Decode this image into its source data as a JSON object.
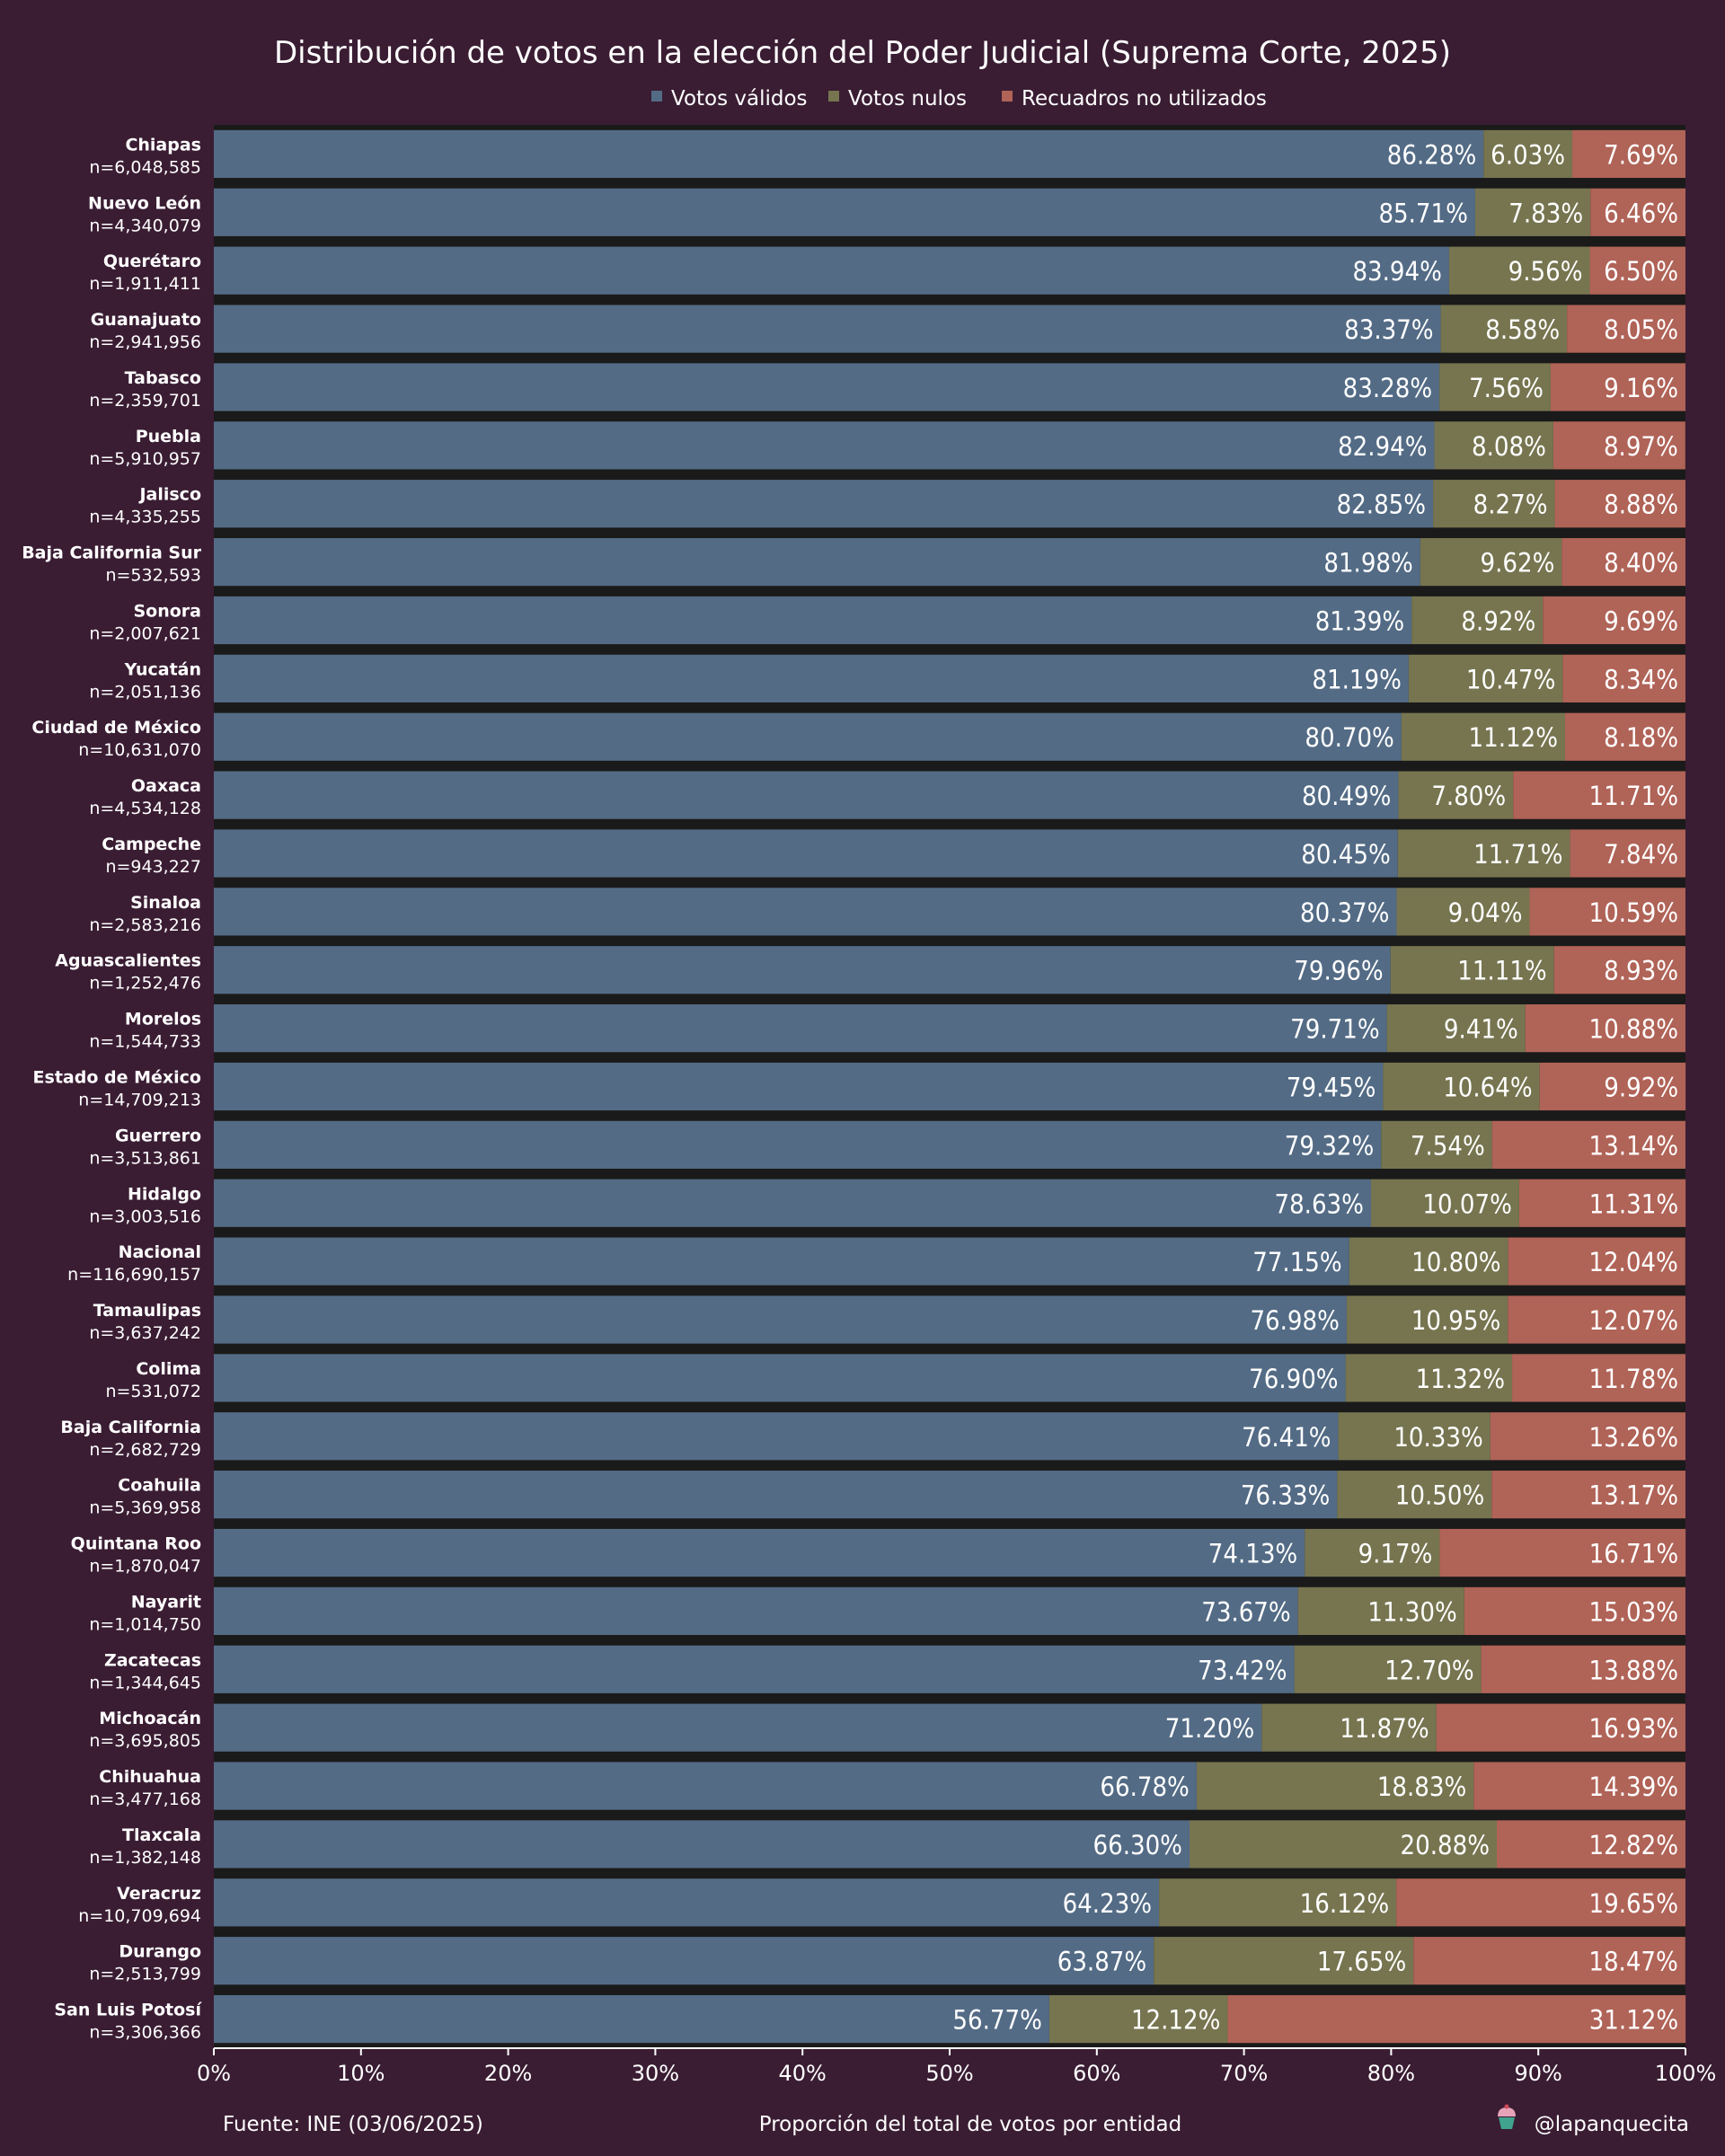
{
  "chart_data": {
    "type": "bar",
    "orientation": "horizontal",
    "stacked": true,
    "title": "Distribución de votos en la elección del Poder Judicial (Suprema Corte, 2025)",
    "xlabel": "Proporción del total de votos por entidad",
    "xlim": [
      0,
      100
    ],
    "x_ticks": [
      "0%",
      "10%",
      "20%",
      "30%",
      "40%",
      "50%",
      "60%",
      "70%",
      "80%",
      "90%",
      "100%"
    ],
    "legend_position": "top-center",
    "grid": false,
    "categories": [
      "Chiapas",
      "Nuevo León",
      "Querétaro",
      "Guanajuato",
      "Tabasco",
      "Puebla",
      "Jalisco",
      "Baja California Sur",
      "Sonora",
      "Yucatán",
      "Ciudad de México",
      "Oaxaca",
      "Campeche",
      "Sinaloa",
      "Aguascalientes",
      "Morelos",
      "Estado de México",
      "Guerrero",
      "Hidalgo",
      "Nacional",
      "Tamaulipas",
      "Colima",
      "Baja California",
      "Coahuila",
      "Quintana Roo",
      "Nayarit",
      "Zacatecas",
      "Michoacán",
      "Chihuahua",
      "Tlaxcala",
      "Veracruz",
      "Durango",
      "San Luis Potosí"
    ],
    "totals": [
      "n=6,048,585",
      "n=4,340,079",
      "n=1,911,411",
      "n=2,941,956",
      "n=2,359,701",
      "n=5,910,957",
      "n=4,335,255",
      "n=532,593",
      "n=2,007,621",
      "n=2,051,136",
      "n=10,631,070",
      "n=4,534,128",
      "n=943,227",
      "n=2,583,216",
      "n=1,252,476",
      "n=1,544,733",
      "n=14,709,213",
      "n=3,513,861",
      "n=3,003,516",
      "n=116,690,157",
      "n=3,637,242",
      "n=531,072",
      "n=2,682,729",
      "n=5,369,958",
      "n=1,870,047",
      "n=1,014,750",
      "n=1,344,645",
      "n=3,695,805",
      "n=3,477,168",
      "n=1,382,148",
      "n=10,709,694",
      "n=2,513,799",
      "n=3,306,366"
    ],
    "series": [
      {
        "name": "Votos válidos",
        "color": "#536b85",
        "values": [
          86.28,
          85.71,
          83.94,
          83.37,
          83.28,
          82.94,
          82.85,
          81.98,
          81.39,
          81.19,
          80.7,
          80.49,
          80.45,
          80.37,
          79.96,
          79.71,
          79.45,
          79.32,
          78.63,
          77.15,
          76.98,
          76.9,
          76.41,
          76.33,
          74.13,
          73.67,
          73.42,
          71.2,
          66.78,
          66.3,
          64.23,
          63.87,
          56.77
        ]
      },
      {
        "name": "Votos nulos",
        "color": "#767550",
        "values": [
          6.03,
          7.83,
          9.56,
          8.58,
          7.56,
          8.08,
          8.27,
          9.62,
          8.92,
          10.47,
          11.12,
          7.8,
          11.71,
          9.04,
          11.11,
          9.41,
          10.64,
          7.54,
          10.07,
          10.8,
          10.95,
          11.32,
          10.33,
          10.5,
          9.17,
          11.3,
          12.7,
          11.87,
          18.83,
          20.88,
          16.12,
          17.65,
          12.12
        ]
      },
      {
        "name": "Recuadros no utilizados",
        "color": "#b06357",
        "values": [
          7.69,
          6.46,
          6.5,
          8.05,
          9.16,
          8.97,
          8.88,
          8.4,
          9.69,
          8.34,
          8.18,
          11.71,
          7.84,
          10.59,
          8.93,
          10.88,
          9.92,
          13.14,
          11.31,
          12.04,
          12.07,
          11.78,
          13.26,
          13.17,
          16.71,
          15.03,
          13.88,
          16.93,
          14.39,
          12.82,
          19.65,
          18.47,
          31.12
        ]
      }
    ],
    "value_labels": [
      [
        "86.28%",
        "85.71%",
        "83.94%",
        "83.37%",
        "83.28%",
        "82.94%",
        "82.85%",
        "81.98%",
        "81.39%",
        "81.19%",
        "80.70%",
        "80.49%",
        "80.45%",
        "80.37%",
        "79.96%",
        "79.71%",
        "79.45%",
        "79.32%",
        "78.63%",
        "77.15%",
        "76.98%",
        "76.90%",
        "76.41%",
        "76.33%",
        "74.13%",
        "73.67%",
        "73.42%",
        "71.20%",
        "66.78%",
        "66.30%",
        "64.23%",
        "63.87%",
        "56.77%"
      ],
      [
        "6.03%",
        "7.83%",
        "9.56%",
        "8.58%",
        "7.56%",
        "8.08%",
        "8.27%",
        "9.62%",
        "8.92%",
        "10.47%",
        "11.12%",
        "7.80%",
        "11.71%",
        "9.04%",
        "11.11%",
        "9.41%",
        "10.64%",
        "7.54%",
        "10.07%",
        "10.80%",
        "10.95%",
        "11.32%",
        "10.33%",
        "10.50%",
        "9.17%",
        "11.30%",
        "12.70%",
        "11.87%",
        "18.83%",
        "20.88%",
        "16.12%",
        "17.65%",
        "12.12%"
      ],
      [
        "7.69%",
        "6.46%",
        "6.50%",
        "8.05%",
        "9.16%",
        "8.97%",
        "8.88%",
        "8.40%",
        "9.69%",
        "8.34%",
        "8.18%",
        "11.71%",
        "7.84%",
        "10.59%",
        "8.93%",
        "10.88%",
        "9.92%",
        "13.14%",
        "11.31%",
        "12.04%",
        "12.07%",
        "11.78%",
        "13.26%",
        "13.17%",
        "16.71%",
        "15.03%",
        "13.88%",
        "16.93%",
        "14.39%",
        "12.82%",
        "19.65%",
        "18.47%",
        "31.12%"
      ]
    ]
  },
  "footer": {
    "source": "Fuente: INE (03/06/2025)",
    "credit": "@lapanquecita",
    "credit_icon": "cupcake-icon"
  },
  "colors": {
    "background": "#3a1d33",
    "plot_background": "#1a1a1a"
  }
}
